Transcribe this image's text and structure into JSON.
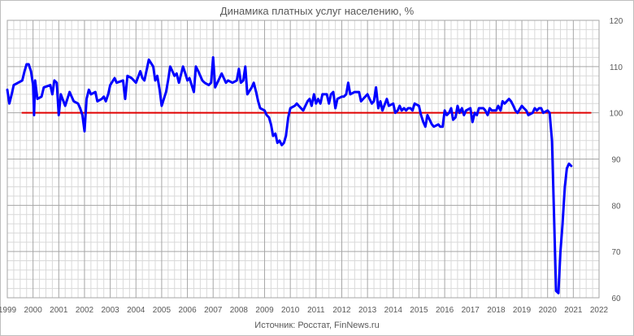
{
  "chart_data": {
    "type": "line",
    "title": "Динамика платных услуг населению, %",
    "source": "Источник: Росстат, FinNews.ru",
    "xlabel": "",
    "ylabel": "",
    "xlim": [
      1999,
      2022
    ],
    "ylim": [
      60,
      120
    ],
    "x_ticks": [
      "1999",
      "2000",
      "2001",
      "2002",
      "2003",
      "2004",
      "2005",
      "2006",
      "2007",
      "2008",
      "2009",
      "2010",
      "2011",
      "2012",
      "2013",
      "2014",
      "2015",
      "2016",
      "2017",
      "2018",
      "2019",
      "2020",
      "2021",
      "2022"
    ],
    "y_ticks": [
      "60",
      "70",
      "80",
      "90",
      "100",
      "110",
      "120"
    ],
    "y_axis_position": "right",
    "grid": true,
    "reference_line": {
      "y": 100,
      "color": "#e00000"
    },
    "series": [
      {
        "color": "#0000ff",
        "points": [
          [
            1999.0,
            105
          ],
          [
            1999.08,
            102
          ],
          [
            1999.17,
            104
          ],
          [
            1999.25,
            106
          ],
          [
            1999.42,
            106.5
          ],
          [
            1999.58,
            107
          ],
          [
            1999.67,
            109
          ],
          [
            1999.75,
            110.5
          ],
          [
            1999.83,
            110.5
          ],
          [
            1999.92,
            109
          ],
          [
            2000.0,
            106
          ],
          [
            2000.04,
            99.5
          ],
          [
            2000.08,
            107
          ],
          [
            2000.17,
            103
          ],
          [
            2000.33,
            103.5
          ],
          [
            2000.42,
            105.5
          ],
          [
            2000.67,
            106
          ],
          [
            2000.75,
            104
          ],
          [
            2000.83,
            107
          ],
          [
            2000.92,
            106.5
          ],
          [
            2001.0,
            99.5
          ],
          [
            2001.08,
            104
          ],
          [
            2001.25,
            101.5
          ],
          [
            2001.42,
            104.5
          ],
          [
            2001.58,
            102.5
          ],
          [
            2001.75,
            102
          ],
          [
            2001.83,
            101
          ],
          [
            2001.92,
            99.5
          ],
          [
            2002.0,
            96
          ],
          [
            2002.08,
            103
          ],
          [
            2002.17,
            105
          ],
          [
            2002.25,
            104
          ],
          [
            2002.42,
            104.5
          ],
          [
            2002.5,
            102.5
          ],
          [
            2002.67,
            103
          ],
          [
            2002.75,
            103.5
          ],
          [
            2002.83,
            102.5
          ],
          [
            2002.92,
            104
          ],
          [
            2003.0,
            106
          ],
          [
            2003.17,
            107.5
          ],
          [
            2003.25,
            106.5
          ],
          [
            2003.5,
            107
          ],
          [
            2003.58,
            103
          ],
          [
            2003.67,
            108
          ],
          [
            2003.83,
            107.5
          ],
          [
            2003.92,
            107
          ],
          [
            2004.0,
            106.5
          ],
          [
            2004.17,
            109
          ],
          [
            2004.25,
            107.5
          ],
          [
            2004.33,
            107
          ],
          [
            2004.5,
            111.5
          ],
          [
            2004.67,
            110
          ],
          [
            2004.75,
            107
          ],
          [
            2004.83,
            108
          ],
          [
            2004.92,
            105
          ],
          [
            2005.0,
            101.5
          ],
          [
            2005.17,
            104.5
          ],
          [
            2005.25,
            107
          ],
          [
            2005.33,
            110
          ],
          [
            2005.5,
            108
          ],
          [
            2005.58,
            108.5
          ],
          [
            2005.67,
            106.5
          ],
          [
            2005.83,
            110
          ],
          [
            2005.92,
            108.5
          ],
          [
            2006.0,
            107
          ],
          [
            2006.08,
            107.5
          ],
          [
            2006.25,
            104.5
          ],
          [
            2006.33,
            110
          ],
          [
            2006.42,
            109
          ],
          [
            2006.58,
            107
          ],
          [
            2006.67,
            106.5
          ],
          [
            2006.83,
            106
          ],
          [
            2006.92,
            106.5
          ],
          [
            2007.0,
            112
          ],
          [
            2007.08,
            105.5
          ],
          [
            2007.25,
            107.5
          ],
          [
            2007.33,
            108.5
          ],
          [
            2007.5,
            106.5
          ],
          [
            2007.58,
            107
          ],
          [
            2007.75,
            106.5
          ],
          [
            2007.92,
            107
          ],
          [
            2008.0,
            109.5
          ],
          [
            2008.08,
            106.5
          ],
          [
            2008.17,
            107
          ],
          [
            2008.25,
            110
          ],
          [
            2008.33,
            104
          ],
          [
            2008.5,
            105.5
          ],
          [
            2008.58,
            106.5
          ],
          [
            2008.67,
            104.5
          ],
          [
            2008.75,
            102.5
          ],
          [
            2008.83,
            101
          ],
          [
            2009.0,
            100.5
          ],
          [
            2009.08,
            99.5
          ],
          [
            2009.17,
            99
          ],
          [
            2009.25,
            97.5
          ],
          [
            2009.33,
            95
          ],
          [
            2009.42,
            95.5
          ],
          [
            2009.5,
            93.5
          ],
          [
            2009.58,
            94
          ],
          [
            2009.67,
            93
          ],
          [
            2009.75,
            93.5
          ],
          [
            2009.83,
            95
          ],
          [
            2009.92,
            99
          ],
          [
            2010.0,
            101
          ],
          [
            2010.17,
            101.5
          ],
          [
            2010.25,
            102
          ],
          [
            2010.33,
            101.5
          ],
          [
            2010.5,
            100.5
          ],
          [
            2010.67,
            102.5
          ],
          [
            2010.75,
            103
          ],
          [
            2010.83,
            101.5
          ],
          [
            2010.92,
            104
          ],
          [
            2011.0,
            102
          ],
          [
            2011.08,
            103
          ],
          [
            2011.17,
            102
          ],
          [
            2011.25,
            104
          ],
          [
            2011.42,
            104
          ],
          [
            2011.5,
            102
          ],
          [
            2011.58,
            104
          ],
          [
            2011.67,
            104.5
          ],
          [
            2011.75,
            101
          ],
          [
            2011.83,
            103
          ],
          [
            2012.0,
            103.5
          ],
          [
            2012.08,
            103.5
          ],
          [
            2012.17,
            104
          ],
          [
            2012.25,
            106.5
          ],
          [
            2012.33,
            104
          ],
          [
            2012.5,
            104.5
          ],
          [
            2012.67,
            104.5
          ],
          [
            2012.75,
            102.5
          ],
          [
            2012.83,
            103
          ],
          [
            2013.0,
            104
          ],
          [
            2013.08,
            103
          ],
          [
            2013.17,
            102
          ],
          [
            2013.25,
            102.5
          ],
          [
            2013.33,
            105.5
          ],
          [
            2013.42,
            101
          ],
          [
            2013.5,
            102.5
          ],
          [
            2013.58,
            100.5
          ],
          [
            2013.75,
            103
          ],
          [
            2013.83,
            101.5
          ],
          [
            2014.0,
            102
          ],
          [
            2014.08,
            100
          ],
          [
            2014.17,
            100.5
          ],
          [
            2014.25,
            101.5
          ],
          [
            2014.33,
            100.5
          ],
          [
            2014.42,
            101
          ],
          [
            2014.5,
            100.5
          ],
          [
            2014.58,
            101
          ],
          [
            2014.67,
            101
          ],
          [
            2014.75,
            100.5
          ],
          [
            2014.83,
            102
          ],
          [
            2015.0,
            101.5
          ],
          [
            2015.08,
            99.5
          ],
          [
            2015.17,
            98
          ],
          [
            2015.25,
            97
          ],
          [
            2015.33,
            99.5
          ],
          [
            2015.5,
            97.5
          ],
          [
            2015.58,
            97
          ],
          [
            2015.75,
            97.5
          ],
          [
            2015.83,
            97
          ],
          [
            2015.92,
            97
          ],
          [
            2016.0,
            100.5
          ],
          [
            2016.08,
            99.5
          ],
          [
            2016.17,
            100
          ],
          [
            2016.25,
            101
          ],
          [
            2016.33,
            98.5
          ],
          [
            2016.42,
            99
          ],
          [
            2016.5,
            101.5
          ],
          [
            2016.58,
            100
          ],
          [
            2016.67,
            101
          ],
          [
            2016.75,
            99.5
          ],
          [
            2016.83,
            100.5
          ],
          [
            2017.0,
            101
          ],
          [
            2017.08,
            98
          ],
          [
            2017.17,
            100
          ],
          [
            2017.25,
            99.5
          ],
          [
            2017.33,
            101
          ],
          [
            2017.5,
            101
          ],
          [
            2017.58,
            100.5
          ],
          [
            2017.67,
            99.5
          ],
          [
            2017.75,
            101
          ],
          [
            2017.83,
            100.5
          ],
          [
            2018.0,
            100.5
          ],
          [
            2018.08,
            101.5
          ],
          [
            2018.17,
            100.5
          ],
          [
            2018.25,
            102.5
          ],
          [
            2018.33,
            102
          ],
          [
            2018.5,
            103
          ],
          [
            2018.58,
            102.5
          ],
          [
            2018.67,
            101.5
          ],
          [
            2018.75,
            100.5
          ],
          [
            2018.83,
            100
          ],
          [
            2019.0,
            101.5
          ],
          [
            2019.08,
            101
          ],
          [
            2019.17,
            100.5
          ],
          [
            2019.25,
            99.5
          ],
          [
            2019.42,
            100
          ],
          [
            2019.5,
            101
          ],
          [
            2019.58,
            100.5
          ],
          [
            2019.67,
            101
          ],
          [
            2019.75,
            101
          ],
          [
            2019.83,
            100
          ],
          [
            2020.0,
            100.5
          ],
          [
            2020.08,
            100
          ],
          [
            2020.17,
            94
          ],
          [
            2020.25,
            78
          ],
          [
            2020.33,
            61.5
          ],
          [
            2020.42,
            61
          ],
          [
            2020.5,
            70
          ],
          [
            2020.58,
            76
          ],
          [
            2020.67,
            84
          ],
          [
            2020.75,
            88
          ],
          [
            2020.83,
            89
          ],
          [
            2020.92,
            88.5
          ]
        ]
      }
    ]
  }
}
